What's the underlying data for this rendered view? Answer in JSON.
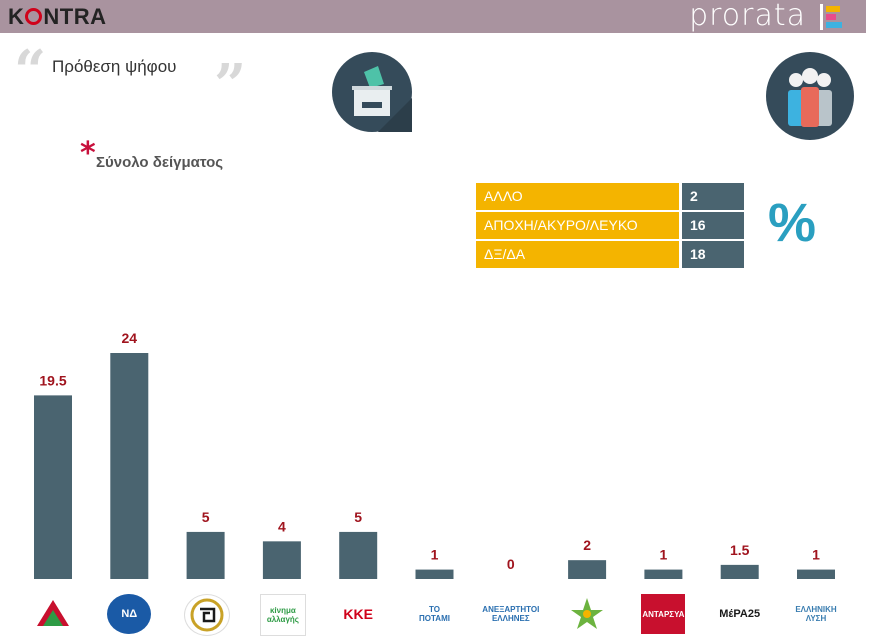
{
  "header": {
    "brand_left": "KONTRA",
    "brand_right": "prorata"
  },
  "title": "Πρόθεση ψήφου",
  "sample_label": "Σύνολο δείγματος",
  "legend_table": [
    {
      "label": "ΑΛΛΟ",
      "value": "2"
    },
    {
      "label": "ΑΠΟΧΗ/ΑΚΥΡΟ/ΛΕΥΚΟ",
      "value": "16"
    },
    {
      "label": "ΔΞ/ΔΑ",
      "value": "18"
    }
  ],
  "percent_symbol": "%",
  "colors": {
    "bar": "#4a6470",
    "value_label": "#a0141e",
    "table_label_bg": "#f4b400",
    "table_value_bg": "#4a6470",
    "topbar": "#a9939f"
  },
  "chart_data": {
    "type": "bar",
    "categories": [
      "ΣΥΡΙΖΑ",
      "ΝΔ",
      "Χρυσή Αυγή",
      "Κίνημα Αλλαγής",
      "ΚΚΕ",
      "Το Ποτάμι",
      "Ανεξάρτητοι Έλληνες",
      "Ένωση Κεντρώων",
      "ΑΝΤΑΡΣΥΑ",
      "ΜέΡΑ25",
      "Ελληνική Λύση"
    ],
    "values": [
      19.5,
      24,
      5,
      4,
      5,
      1,
      0,
      2,
      1,
      1.5,
      1
    ],
    "value_labels": [
      "19.5",
      "24",
      "5",
      "4",
      "5",
      "1",
      "0",
      "2",
      "1",
      "1.5",
      "1"
    ],
    "logo_texts": [
      "",
      "ΝΔ",
      "",
      "κίνημα αλλαγής",
      "ΚΚΕ",
      "ΤΟ ΠΟΤΑΜΙ",
      "ΑΝΕΞΑΡΤΗΤΟΙ ΕΛΛΗΝΕΣ",
      "",
      "ΑΝΤΑΡΣΥΑ",
      "ΜέΡΑ25",
      "ΕΛΛΗΝΙΚΗ ΛΥΣΗ"
    ],
    "ylim": [
      0,
      24
    ],
    "grid": false,
    "legend": "none"
  }
}
